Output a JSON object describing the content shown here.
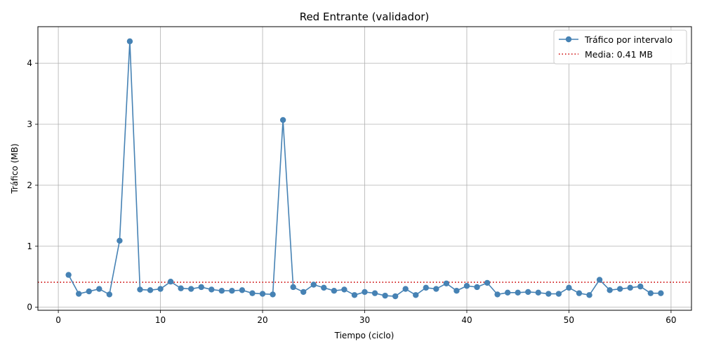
{
  "chart_data": {
    "type": "line",
    "title": "Red Entrante (validador)",
    "xlabel": "Tiempo (ciclo)",
    "ylabel": "Tráfico (MB)",
    "xlim": [
      -2,
      62
    ],
    "ylim": [
      -0.05,
      4.6
    ],
    "xticks": [
      0,
      10,
      20,
      30,
      40,
      50,
      60
    ],
    "yticks": [
      0,
      1,
      2,
      3,
      4
    ],
    "grid": true,
    "legend_position": "top-right",
    "series": [
      {
        "name": "Tráfico por intervalo",
        "color": "#4682b4",
        "marker": "circle",
        "x": [
          1,
          2,
          3,
          4,
          5,
          6,
          7,
          8,
          9,
          10,
          11,
          12,
          13,
          14,
          15,
          16,
          17,
          18,
          19,
          20,
          21,
          22,
          23,
          24,
          25,
          26,
          27,
          28,
          29,
          30,
          31,
          32,
          33,
          34,
          35,
          36,
          37,
          38,
          39,
          40,
          41,
          42,
          43,
          44,
          45,
          46,
          47,
          48,
          49,
          50,
          51,
          52,
          53,
          54,
          55,
          56,
          57,
          58,
          59
        ],
        "y": [
          0.53,
          0.22,
          0.26,
          0.3,
          0.21,
          1.09,
          4.36,
          0.29,
          0.28,
          0.3,
          0.42,
          0.31,
          0.3,
          0.33,
          0.29,
          0.27,
          0.27,
          0.28,
          0.23,
          0.22,
          0.21,
          3.07,
          0.33,
          0.25,
          0.37,
          0.32,
          0.27,
          0.29,
          0.2,
          0.25,
          0.23,
          0.19,
          0.18,
          0.3,
          0.2,
          0.32,
          0.3,
          0.39,
          0.27,
          0.35,
          0.33,
          0.4,
          0.21,
          0.24,
          0.24,
          0.25,
          0.24,
          0.22,
          0.22,
          0.32,
          0.23,
          0.2,
          0.45,
          0.28,
          0.3,
          0.32,
          0.34,
          0.23,
          0.23
        ]
      }
    ],
    "reference_line": {
      "name": "Media: 0.41 MB",
      "value": 0.41,
      "color": "#cc0000",
      "style": "dotted"
    }
  }
}
